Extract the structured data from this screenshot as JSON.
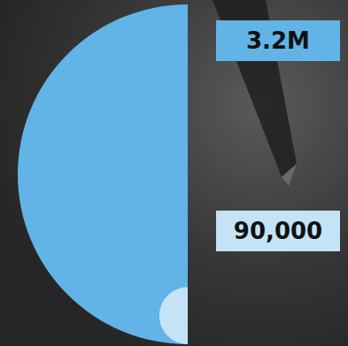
{
  "chart_data": {
    "type": "semicircle",
    "values": [
      3200000,
      90000
    ],
    "value_labels": [
      "3.2M",
      "90,000"
    ],
    "colors": [
      "#62b3e6",
      "#c5e3f7"
    ],
    "data_labels": true
  }
}
